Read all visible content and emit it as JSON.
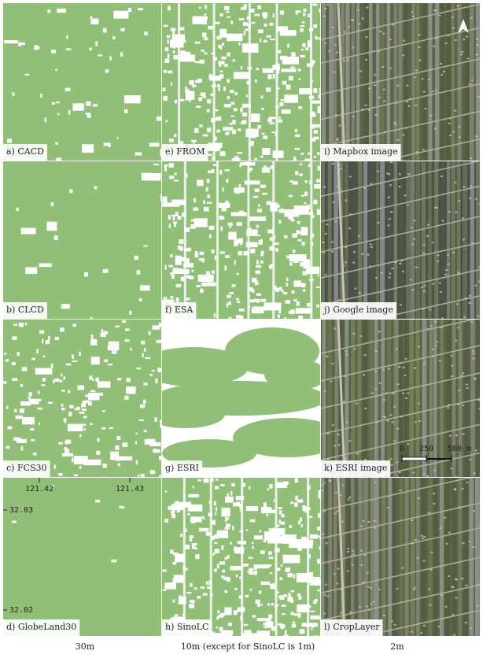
{
  "panels": [
    {
      "label": "a) CACD"
    },
    {
      "label": "e) FROM"
    },
    {
      "label": "i) Mapbox image"
    },
    {
      "label": "b) CLCD"
    },
    {
      "label": "f) ESA"
    },
    {
      "label": "j) Google image"
    },
    {
      "label": "c) FCS30"
    },
    {
      "label": "g) ESRI"
    },
    {
      "label": "k) ESRI image"
    },
    {
      "label": "d) GlobeLand30"
    },
    {
      "label": "h) SinoLC"
    },
    {
      "label": "l) CropLayer"
    }
  ],
  "coordinates": {
    "lon": [
      "121.42",
      "121.43"
    ],
    "lat": [
      "32.03",
      "32.02"
    ]
  },
  "scale_bar": {
    "ticks": [
      "0",
      "250",
      "500 m"
    ]
  },
  "column_labels": [
    "30m",
    "10m (except for SinoLC is 1m)",
    "2m"
  ]
}
